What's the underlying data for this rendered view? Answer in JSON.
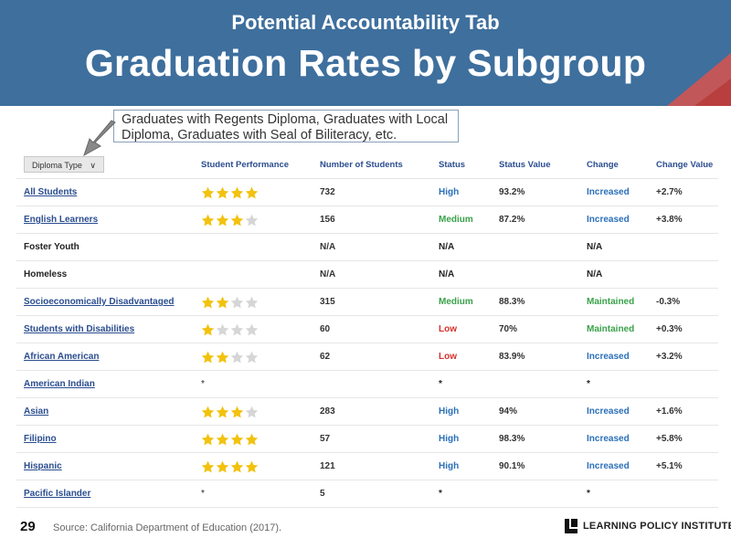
{
  "slide": {
    "subtitle": "Potential Accountability Tab",
    "title": "Graduation Rates by Subgroup",
    "callout": "Graduates with Regents Diploma, Graduates with Local Diploma, Graduates with Seal of Biliteracy, etc.",
    "page_number": "29",
    "source": "Source: California Department of Education (2017).",
    "logo_text": "LEARNING POLICY INSTITUTE"
  },
  "table": {
    "dropdown_label": "Diploma Type",
    "headers": {
      "student_performance": "Student Performance",
      "number_of_students": "Number of Students",
      "status": "Status",
      "status_value": "Status Value",
      "change": "Change",
      "change_value": "Change Value"
    },
    "rows": [
      {
        "group": "All Students",
        "link": true,
        "stars": 4,
        "num": "732",
        "status": "High",
        "status_color": "blue",
        "status_value": "93.2%",
        "change": "Increased",
        "change_color": "blue",
        "change_value": "+2.7%"
      },
      {
        "group": "English Learners",
        "link": true,
        "stars": 3,
        "num": "156",
        "status": "Medium",
        "status_color": "green",
        "status_value": "87.2%",
        "change": "Increased",
        "change_color": "blue",
        "change_value": "+3.8%"
      },
      {
        "group": "Foster Youth",
        "link": false,
        "stars": 0,
        "num": "N/A",
        "status": "N/A",
        "status_color": "plain",
        "status_value": "",
        "change": "N/A",
        "change_color": "plain",
        "change_value": ""
      },
      {
        "group": "Homeless",
        "link": false,
        "stars": 0,
        "num": "N/A",
        "status": "N/A",
        "status_color": "plain",
        "status_value": "",
        "change": "N/A",
        "change_color": "plain",
        "change_value": ""
      },
      {
        "group": "Socioeconomically Disadvantaged",
        "link": true,
        "stars": 2,
        "num": "315",
        "status": "Medium",
        "status_color": "green",
        "status_value": "88.3%",
        "change": "Maintained",
        "change_color": "green",
        "change_value": "-0.3%"
      },
      {
        "group": "Students with Disabilities",
        "link": true,
        "stars": 1,
        "num": "60",
        "status": "Low",
        "status_color": "red",
        "status_value": "70%",
        "change": "Maintained",
        "change_color": "green",
        "change_value": "+0.3%"
      },
      {
        "group": "African American",
        "link": true,
        "stars": 2,
        "num": "62",
        "status": "Low",
        "status_color": "red",
        "status_value": "83.9%",
        "change": "Increased",
        "change_color": "blue",
        "change_value": "+3.2%"
      },
      {
        "group": "American Indian",
        "link": true,
        "stars": 0,
        "perf_text": "*",
        "num": "",
        "status": "*",
        "status_color": "plain",
        "status_value": "",
        "change": "*",
        "change_color": "plain",
        "change_value": ""
      },
      {
        "group": "Asian",
        "link": true,
        "stars": 3,
        "num": "283",
        "status": "High",
        "status_color": "blue",
        "status_value": "94%",
        "change": "Increased",
        "change_color": "blue",
        "change_value": "+1.6%"
      },
      {
        "group": "Filipino",
        "link": true,
        "stars": 4,
        "num": "57",
        "status": "High",
        "status_color": "blue",
        "status_value": "98.3%",
        "change": "Increased",
        "change_color": "blue",
        "change_value": "+5.8%"
      },
      {
        "group": "Hispanic",
        "link": true,
        "stars": 4,
        "num": "121",
        "status": "High",
        "status_color": "blue",
        "status_value": "90.1%",
        "change": "Increased",
        "change_color": "blue",
        "change_value": "+5.1%"
      },
      {
        "group": "Pacific Islander",
        "link": true,
        "stars": 0,
        "perf_text": "*",
        "num": "5",
        "status": "*",
        "status_color": "plain",
        "status_value": "",
        "change": "*",
        "change_color": "plain",
        "change_value": ""
      }
    ]
  },
  "colors": {
    "banner": "#3e6f9d",
    "star_filled": "#f2c20e",
    "star_empty": "#d6d6d6",
    "blue": "#2a6fb8",
    "green": "#3aa24a",
    "red": "#d6302a"
  }
}
